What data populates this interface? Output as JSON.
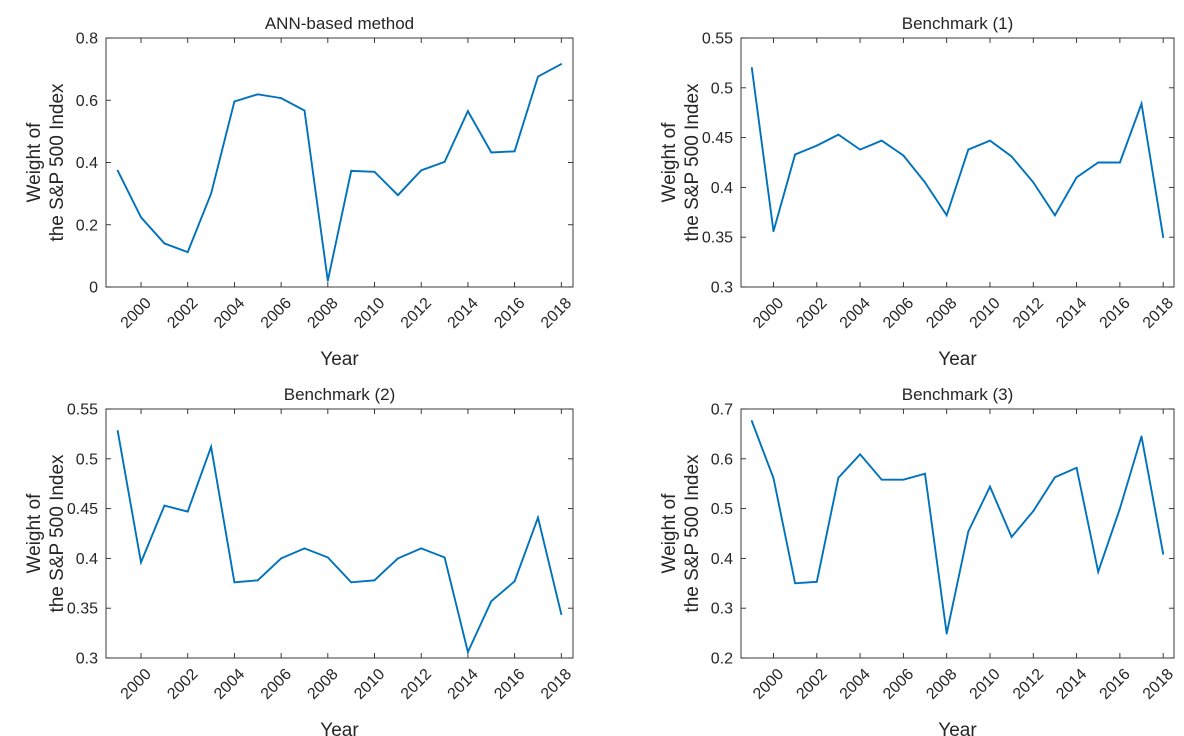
{
  "colors": {
    "line": "#0072BD",
    "axis": "#262626",
    "background": "#ffffff"
  },
  "chart_data": [
    {
      "type": "line",
      "title": "ANN-based method",
      "xlabel": "Year",
      "ylabel_lines": [
        "Weight of",
        "the S&P 500 Index"
      ],
      "xlim": [
        1998.5,
        2018.5
      ],
      "ylim": [
        0,
        0.8
      ],
      "xticks": [
        2000,
        2002,
        2004,
        2006,
        2008,
        2010,
        2012,
        2014,
        2016,
        2018
      ],
      "yticks": [
        "0",
        "0.2",
        "0.4",
        "0.6",
        "0.8"
      ],
      "grid": false,
      "series": [
        {
          "x": [
            1999,
            2000,
            2001,
            2002,
            2003,
            2004,
            2005,
            2006,
            2007,
            2008,
            2009,
            2010,
            2011,
            2012,
            2013,
            2014,
            2015,
            2016,
            2017,
            2018
          ],
          "y": [
            0.374,
            0.224,
            0.14,
            0.112,
            0.3,
            0.596,
            0.619,
            0.607,
            0.567,
            0.02,
            0.373,
            0.37,
            0.295,
            0.375,
            0.402,
            0.565,
            0.432,
            0.436,
            0.676,
            0.716
          ]
        }
      ]
    },
    {
      "type": "line",
      "title": "Benchmark (1)",
      "xlabel": "Year",
      "ylabel_lines": [
        "Weight of",
        "the S&P 500 Index"
      ],
      "xlim": [
        1998.5,
        2018.5
      ],
      "ylim": [
        0.3,
        0.55
      ],
      "xticks": [
        2000,
        2002,
        2004,
        2006,
        2008,
        2010,
        2012,
        2014,
        2016,
        2018
      ],
      "yticks": [
        "0.3",
        "0.35",
        "0.4",
        "0.45",
        "0.5",
        "0.55"
      ],
      "grid": false,
      "series": [
        {
          "x": [
            1999,
            2000,
            2001,
            2002,
            2003,
            2004,
            2005,
            2006,
            2007,
            2008,
            2009,
            2010,
            2011,
            2012,
            2013,
            2014,
            2015,
            2016,
            2017,
            2018
          ],
          "y": [
            0.52,
            0.356,
            0.433,
            0.442,
            0.453,
            0.438,
            0.447,
            0.432,
            0.405,
            0.372,
            0.438,
            0.447,
            0.431,
            0.405,
            0.372,
            0.41,
            0.425,
            0.425,
            0.484,
            0.35
          ]
        }
      ]
    },
    {
      "type": "line",
      "title": "Benchmark (2)",
      "xlabel": "Year",
      "ylabel_lines": [
        "Weight of",
        "the S&P 500 Index"
      ],
      "xlim": [
        1998.5,
        2018.5
      ],
      "ylim": [
        0.3,
        0.55
      ],
      "xticks": [
        2000,
        2002,
        2004,
        2006,
        2008,
        2010,
        2012,
        2014,
        2016,
        2018
      ],
      "yticks": [
        "0.3",
        "0.35",
        "0.4",
        "0.45",
        "0.5",
        "0.55"
      ],
      "grid": false,
      "series": [
        {
          "x": [
            1999,
            2000,
            2001,
            2002,
            2003,
            2004,
            2005,
            2006,
            2007,
            2008,
            2009,
            2010,
            2011,
            2012,
            2013,
            2014,
            2015,
            2016,
            2017,
            2018
          ],
          "y": [
            0.528,
            0.396,
            0.453,
            0.447,
            0.512,
            0.376,
            0.378,
            0.4,
            0.41,
            0.401,
            0.376,
            0.378,
            0.4,
            0.41,
            0.401,
            0.306,
            0.357,
            0.377,
            0.441,
            0.344
          ]
        }
      ]
    },
    {
      "type": "line",
      "title": "Benchmark (3)",
      "xlabel": "Year",
      "ylabel_lines": [
        "Weight of",
        "the S&P 500 Index"
      ],
      "xlim": [
        1998.5,
        2018.5
      ],
      "ylim": [
        0.2,
        0.7
      ],
      "xticks": [
        2000,
        2002,
        2004,
        2006,
        2008,
        2010,
        2012,
        2014,
        2016,
        2018
      ],
      "yticks": [
        "0.2",
        "0.3",
        "0.4",
        "0.5",
        "0.6",
        "0.7"
      ],
      "grid": false,
      "series": [
        {
          "x": [
            1999,
            2000,
            2001,
            2002,
            2003,
            2004,
            2005,
            2006,
            2007,
            2008,
            2009,
            2010,
            2011,
            2012,
            2013,
            2014,
            2015,
            2016,
            2017,
            2018
          ],
          "y": [
            0.676,
            0.561,
            0.35,
            0.353,
            0.562,
            0.609,
            0.558,
            0.558,
            0.57,
            0.249,
            0.454,
            0.544,
            0.443,
            0.495,
            0.563,
            0.582,
            0.373,
            0.5,
            0.645,
            0.409
          ]
        }
      ]
    }
  ]
}
